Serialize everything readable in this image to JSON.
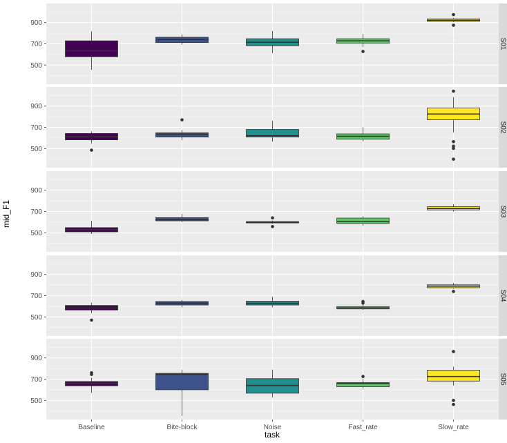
{
  "chart_data": {
    "type": "box",
    "xlabel": "task",
    "ylabel": "mid_F1",
    "ylim": [
      320,
      1080
    ],
    "yticks": [
      500,
      700,
      900
    ],
    "grid": true,
    "categories": [
      "Baseline",
      "Bite-block",
      "Noise",
      "Fast_rate",
      "Slow_rate"
    ],
    "colors": [
      "#440154",
      "#3b528b",
      "#21908c",
      "#5dc863",
      "#fde725"
    ],
    "panels": [
      {
        "label": "S01",
        "boxes": [
          {
            "category": "Baseline",
            "min": 455,
            "q1": 578,
            "median": 635,
            "q3": 728,
            "max": 818,
            "outliers": []
          },
          {
            "category": "Bite-block",
            "min": 692,
            "q1": 712,
            "median": 740,
            "q3": 762,
            "max": 788,
            "outliers": []
          },
          {
            "category": "Noise",
            "min": 612,
            "q1": 682,
            "median": 715,
            "q3": 748,
            "max": 820,
            "outliers": []
          },
          {
            "category": "Fast_rate",
            "min": 668,
            "q1": 705,
            "median": 728,
            "q3": 748,
            "max": 792,
            "outliers": [
              628
            ]
          },
          {
            "category": "Slow_rate",
            "min": 905,
            "q1": 912,
            "median": 922,
            "q3": 935,
            "max": 945,
            "outliers": [
              975,
              875
            ]
          }
        ]
      },
      {
        "label": "S02",
        "boxes": [
          {
            "category": "Baseline",
            "min": 548,
            "q1": 582,
            "median": 610,
            "q3": 642,
            "max": 662,
            "outliers": [
              485
            ]
          },
          {
            "category": "Bite-block",
            "min": 578,
            "q1": 608,
            "median": 635,
            "q3": 648,
            "max": 675,
            "outliers": [
              770
            ]
          },
          {
            "category": "Noise",
            "min": 565,
            "q1": 608,
            "median": 620,
            "q3": 680,
            "max": 762,
            "outliers": []
          },
          {
            "category": "Fast_rate",
            "min": 568,
            "q1": 588,
            "median": 615,
            "q3": 638,
            "max": 700,
            "outliers": []
          },
          {
            "category": "Slow_rate",
            "min": 652,
            "q1": 772,
            "median": 825,
            "q3": 882,
            "max": 985,
            "outliers": [
              1040,
              565,
              522,
              502,
              400
            ]
          }
        ]
      },
      {
        "label": "S03",
        "boxes": [
          {
            "category": "Baseline",
            "min": 490,
            "q1": 508,
            "median": 528,
            "q3": 548,
            "max": 612,
            "outliers": []
          },
          {
            "category": "Bite-block",
            "min": 600,
            "q1": 612,
            "median": 625,
            "q3": 642,
            "max": 678,
            "outliers": []
          },
          {
            "category": "Noise",
            "min": 585,
            "q1": 592,
            "median": 598,
            "q3": 605,
            "max": 615,
            "outliers": [
              640,
              558
            ]
          },
          {
            "category": "Fast_rate",
            "min": 565,
            "q1": 588,
            "median": 605,
            "q3": 638,
            "max": 655,
            "outliers": []
          },
          {
            "category": "Slow_rate",
            "min": 700,
            "q1": 715,
            "median": 728,
            "q3": 745,
            "max": 768,
            "outliers": []
          }
        ]
      },
      {
        "label": "S04",
        "boxes": [
          {
            "category": "Baseline",
            "min": 535,
            "q1": 565,
            "median": 585,
            "q3": 608,
            "max": 635,
            "outliers": [
              470
            ]
          },
          {
            "category": "Bite-block",
            "min": 590,
            "q1": 612,
            "median": 630,
            "q3": 645,
            "max": 660,
            "outliers": []
          },
          {
            "category": "Noise",
            "min": 590,
            "q1": 612,
            "median": 628,
            "q3": 648,
            "max": 690,
            "outliers": []
          },
          {
            "category": "Fast_rate",
            "min": 565,
            "q1": 575,
            "median": 585,
            "q3": 598,
            "max": 615,
            "outliers": [
              645,
              630
            ]
          },
          {
            "category": "Slow_rate",
            "min": 765,
            "q1": 775,
            "median": 790,
            "q3": 802,
            "max": 820,
            "outliers": [
              740
            ]
          }
        ]
      },
      {
        "label": "S05",
        "boxes": [
          {
            "category": "Baseline",
            "min": 570,
            "q1": 638,
            "median": 660,
            "q3": 678,
            "max": 712,
            "outliers": [
              760,
              745
            ]
          },
          {
            "category": "Bite-block",
            "min": 355,
            "q1": 600,
            "median": 745,
            "q3": 755,
            "max": 790,
            "outliers": []
          },
          {
            "category": "Noise",
            "min": 528,
            "q1": 568,
            "median": 640,
            "q3": 705,
            "max": 790,
            "outliers": []
          },
          {
            "category": "Fast_rate",
            "min": 612,
            "q1": 628,
            "median": 660,
            "q3": 668,
            "max": 705,
            "outliers": [
              725
            ]
          },
          {
            "category": "Slow_rate",
            "min": 640,
            "q1": 682,
            "median": 725,
            "q3": 785,
            "max": 818,
            "outliers": [
              960,
              500,
              462
            ]
          }
        ]
      }
    ]
  }
}
